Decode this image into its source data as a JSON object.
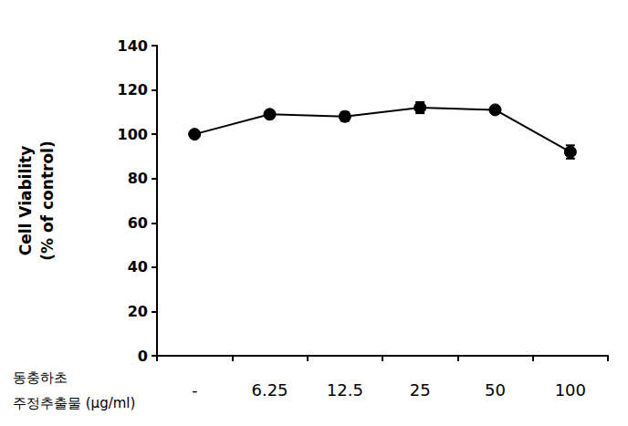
{
  "chart_data": {
    "type": "line",
    "y_label": "Cell Viability\n(% of control)",
    "x_label": "동충하초\n주정추출물 (μg/ml)",
    "categories": [
      "-",
      "6.25",
      "12.5",
      "25",
      "50",
      "100"
    ],
    "values": [
      100,
      109,
      108,
      112,
      111,
      92
    ],
    "errors": [
      1,
      1.5,
      2,
      2.5,
      1.5,
      3
    ],
    "color": "#000000",
    "marker": "circle",
    "ylim": [
      0,
      140
    ],
    "yticks": [
      0,
      20,
      40,
      60,
      80,
      100,
      120,
      140
    ],
    "grid": false
  }
}
